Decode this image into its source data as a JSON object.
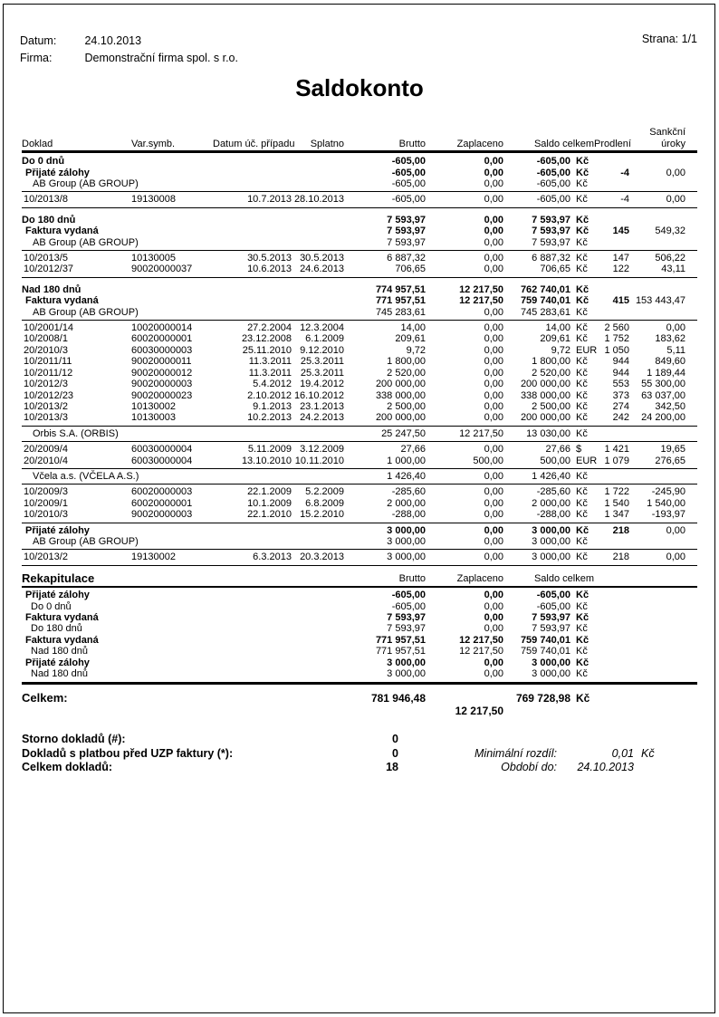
{
  "meta": {
    "datum_label": "Datum:",
    "datum_value": "24.10.2013",
    "firma_label": "Firma:",
    "firma_value": "Demonstrační firma spol. s r.o.",
    "strana": "Strana: 1/1"
  },
  "title": "Saldokonto",
  "table": {
    "headers": {
      "doklad": "Doklad",
      "varsymb": "Var.symb.",
      "datum": "Datum úč. případu",
      "splatno": "Splatno",
      "brutto": "Brutto",
      "zaplaceno": "Zaplaceno",
      "saldo": "Saldo celkem",
      "prodleni": "Prodlení",
      "sankcni_line1": "Sankční",
      "sankcni_line2": "úroky"
    },
    "rows": [
      {
        "t": "section",
        "name": "Do 0 dnů",
        "brutto": "-605,00",
        "zaplaceno": "0,00",
        "saldo": "-605,00",
        "mena": "Kč"
      },
      {
        "t": "group",
        "name": "Přijaté zálohy",
        "brutto": "-605,00",
        "zaplaceno": "0,00",
        "saldo": "-605,00",
        "mena": "Kč",
        "prodleni": "-4",
        "sankcni": "0,00"
      },
      {
        "t": "firm",
        "name": "AB Group (AB GROUP)",
        "brutto": "-605,00",
        "zaplaceno": "0,00",
        "saldo": "-605,00",
        "mena": "Kč"
      },
      {
        "t": "rule"
      },
      {
        "t": "detail",
        "doklad": "10/2013/8",
        "varsymb": "19130008",
        "datum": "10.7.2013",
        "splatno": "28.10.2013",
        "brutto": "-605,00",
        "zaplaceno": "0,00",
        "saldo": "-605,00",
        "mena": "Kč",
        "prodleni": "-4",
        "sankcni": "0,00"
      },
      {
        "t": "rule"
      },
      {
        "t": "gap"
      },
      {
        "t": "section",
        "name": "Do 180 dnů",
        "brutto": "7 593,97",
        "zaplaceno": "0,00",
        "saldo": "7 593,97",
        "mena": "Kč"
      },
      {
        "t": "group",
        "name": "Faktura vydaná",
        "brutto": "7 593,97",
        "zaplaceno": "0,00",
        "saldo": "7 593,97",
        "mena": "Kč",
        "prodleni": "145",
        "sankcni": "549,32"
      },
      {
        "t": "firm",
        "name": "AB Group (AB GROUP)",
        "brutto": "7 593,97",
        "zaplaceno": "0,00",
        "saldo": "7 593,97",
        "mena": "Kč"
      },
      {
        "t": "rule"
      },
      {
        "t": "detail",
        "doklad": "10/2013/5",
        "varsymb": "10130005",
        "datum": "30.5.2013",
        "splatno": "30.5.2013",
        "brutto": "6 887,32",
        "zaplaceno": "0,00",
        "saldo": "6 887,32",
        "mena": "Kč",
        "prodleni": "147",
        "sankcni": "506,22"
      },
      {
        "t": "detail",
        "doklad": "10/2012/37",
        "varsymb": "90020000037",
        "datum": "10.6.2013",
        "splatno": "24.6.2013",
        "brutto": "706,65",
        "zaplaceno": "0,00",
        "saldo": "706,65",
        "mena": "Kč",
        "prodleni": "122",
        "sankcni": "43,11"
      },
      {
        "t": "rule"
      },
      {
        "t": "gap"
      },
      {
        "t": "section",
        "name": "Nad 180 dnů",
        "brutto": "774 957,51",
        "zaplaceno": "12 217,50",
        "saldo": "762 740,01",
        "mena": "Kč"
      },
      {
        "t": "group",
        "name": "Faktura vydaná",
        "brutto": "771 957,51",
        "zaplaceno": "12 217,50",
        "saldo": "759 740,01",
        "mena": "Kč",
        "prodleni": "415",
        "sankcni": "153 443,47"
      },
      {
        "t": "firm",
        "name": "AB Group (AB GROUP)",
        "brutto": "745 283,61",
        "zaplaceno": "0,00",
        "saldo": "745 283,61",
        "mena": "Kč"
      },
      {
        "t": "rule"
      },
      {
        "t": "detail",
        "doklad": "10/2001/14",
        "varsymb": "10020000014",
        "datum": "27.2.2004",
        "splatno": "12.3.2004",
        "brutto": "14,00",
        "zaplaceno": "0,00",
        "saldo": "14,00",
        "mena": "Kč",
        "prodleni": "2 560",
        "sankcni": "0,00"
      },
      {
        "t": "detail",
        "doklad": "10/2008/1",
        "varsymb": "60020000001",
        "datum": "23.12.2008",
        "splatno": "6.1.2009",
        "brutto": "209,61",
        "zaplaceno": "0,00",
        "saldo": "209,61",
        "mena": "Kč",
        "prodleni": "1 752",
        "sankcni": "183,62"
      },
      {
        "t": "detail",
        "doklad": "20/2010/3",
        "varsymb": "60030000003",
        "datum": "25.11.2010",
        "splatno": "9.12.2010",
        "brutto": "9,72",
        "zaplaceno": "0,00",
        "saldo": "9,72",
        "mena": "EUR",
        "prodleni": "1 050",
        "sankcni": "5,11"
      },
      {
        "t": "detail",
        "doklad": "10/2011/11",
        "varsymb": "90020000011",
        "datum": "11.3.2011",
        "splatno": "25.3.2011",
        "brutto": "1 800,00",
        "zaplaceno": "0,00",
        "saldo": "1 800,00",
        "mena": "Kč",
        "prodleni": "944",
        "sankcni": "849,60"
      },
      {
        "t": "detail",
        "doklad": "10/2011/12",
        "varsymb": "90020000012",
        "datum": "11.3.2011",
        "splatno": "25.3.2011",
        "brutto": "2 520,00",
        "zaplaceno": "0,00",
        "saldo": "2 520,00",
        "mena": "Kč",
        "prodleni": "944",
        "sankcni": "1 189,44"
      },
      {
        "t": "detail",
        "doklad": "10/2012/3",
        "varsymb": "90020000003",
        "datum": "5.4.2012",
        "splatno": "19.4.2012",
        "brutto": "200 000,00",
        "zaplaceno": "0,00",
        "saldo": "200 000,00",
        "mena": "Kč",
        "prodleni": "553",
        "sankcni": "55 300,00"
      },
      {
        "t": "detail",
        "doklad": "10/2012/23",
        "varsymb": "90020000023",
        "datum": "2.10.2012",
        "splatno": "16.10.2012",
        "brutto": "338 000,00",
        "zaplaceno": "0,00",
        "saldo": "338 000,00",
        "mena": "Kč",
        "prodleni": "373",
        "sankcni": "63 037,00"
      },
      {
        "t": "detail",
        "doklad": "10/2013/2",
        "varsymb": "10130002",
        "datum": "9.1.2013",
        "splatno": "23.1.2013",
        "brutto": "2 500,00",
        "zaplaceno": "0,00",
        "saldo": "2 500,00",
        "mena": "Kč",
        "prodleni": "274",
        "sankcni": "342,50"
      },
      {
        "t": "detail",
        "doklad": "10/2013/3",
        "varsymb": "10130003",
        "datum": "10.2.2013",
        "splatno": "24.2.2013",
        "brutto": "200 000,00",
        "zaplaceno": "0,00",
        "saldo": "200 000,00",
        "mena": "Kč",
        "prodleni": "242",
        "sankcni": "24 200,00"
      },
      {
        "t": "rule"
      },
      {
        "t": "firm",
        "name": "Orbis S.A. (ORBIS)",
        "brutto": "25 247,50",
        "zaplaceno": "12 217,50",
        "saldo": "13 030,00",
        "mena": "Kč"
      },
      {
        "t": "rule"
      },
      {
        "t": "detail",
        "doklad": "20/2009/4",
        "varsymb": "60030000004",
        "datum": "5.11.2009",
        "splatno": "3.12.2009",
        "brutto": "27,66",
        "zaplaceno": "0,00",
        "saldo": "27,66",
        "mena": "$",
        "prodleni": "1 421",
        "sankcni": "19,65"
      },
      {
        "t": "detail",
        "doklad": "20/2010/4",
        "varsymb": "60030000004",
        "datum": "13.10.2010",
        "splatno": "10.11.2010",
        "brutto": "1 000,00",
        "zaplaceno": "500,00",
        "saldo": "500,00",
        "mena": "EUR",
        "prodleni": "1 079",
        "sankcni": "276,65"
      },
      {
        "t": "rule"
      },
      {
        "t": "firm",
        "name": "Včela a.s. (VČELA A.S.)",
        "brutto": "1 426,40",
        "zaplaceno": "0,00",
        "saldo": "1 426,40",
        "mena": "Kč"
      },
      {
        "t": "rule"
      },
      {
        "t": "detail",
        "doklad": "10/2009/3",
        "varsymb": "60020000003",
        "datum": "22.1.2009",
        "splatno": "5.2.2009",
        "brutto": "-285,60",
        "zaplaceno": "0,00",
        "saldo": "-285,60",
        "mena": "Kč",
        "prodleni": "1 722",
        "sankcni": "-245,90"
      },
      {
        "t": "detail",
        "doklad": "10/2009/1",
        "varsymb": "60020000001",
        "datum": "10.1.2009",
        "splatno": "6.8.2009",
        "brutto": "2 000,00",
        "zaplaceno": "0,00",
        "saldo": "2 000,00",
        "mena": "Kč",
        "prodleni": "1 540",
        "sankcni": "1 540,00"
      },
      {
        "t": "detail",
        "doklad": "10/2010/3",
        "varsymb": "90020000003",
        "datum": "22.1.2010",
        "splatno": "15.2.2010",
        "brutto": "-288,00",
        "zaplaceno": "0,00",
        "saldo": "-288,00",
        "mena": "Kč",
        "prodleni": "1 347",
        "sankcni": "-193,97"
      },
      {
        "t": "rule"
      },
      {
        "t": "group",
        "name": "Přijaté zálohy",
        "brutto": "3 000,00",
        "zaplaceno": "0,00",
        "saldo": "3 000,00",
        "mena": "Kč",
        "prodleni": "218",
        "sankcni": "0,00"
      },
      {
        "t": "firm",
        "name": "AB Group (AB GROUP)",
        "brutto": "3 000,00",
        "zaplaceno": "0,00",
        "saldo": "3 000,00",
        "mena": "Kč"
      },
      {
        "t": "rule"
      },
      {
        "t": "detail",
        "doklad": "10/2013/2",
        "varsymb": "19130002",
        "datum": "6.3.2013",
        "splatno": "20.3.2013",
        "brutto": "3 000,00",
        "zaplaceno": "0,00",
        "saldo": "3 000,00",
        "mena": "Kč",
        "prodleni": "218",
        "sankcni": "0,00"
      },
      {
        "t": "rule"
      }
    ]
  },
  "rekap": {
    "title": "Rekapitulace",
    "headers": {
      "brutto": "Brutto",
      "zaplaceno": "Zaplaceno",
      "saldo": "Saldo celkem"
    },
    "rows": [
      {
        "t": "group",
        "name": "Přijaté zálohy",
        "brutto": "-605,00",
        "zaplaceno": "0,00",
        "saldo": "-605,00",
        "mena": "Kč"
      },
      {
        "t": "sub",
        "name": "Do 0 dnů",
        "brutto": "-605,00",
        "zaplaceno": "0,00",
        "saldo": "-605,00",
        "mena": "Kč"
      },
      {
        "t": "group",
        "name": "Faktura vydaná",
        "brutto": "7 593,97",
        "zaplaceno": "0,00",
        "saldo": "7 593,97",
        "mena": "Kč"
      },
      {
        "t": "sub",
        "name": "Do 180 dnů",
        "brutto": "7 593,97",
        "zaplaceno": "0,00",
        "saldo": "7 593,97",
        "mena": "Kč"
      },
      {
        "t": "group",
        "name": "Faktura vydaná",
        "brutto": "771 957,51",
        "zaplaceno": "12 217,50",
        "saldo": "759 740,01",
        "mena": "Kč"
      },
      {
        "t": "sub",
        "name": "Nad 180 dnů",
        "brutto": "771 957,51",
        "zaplaceno": "12 217,50",
        "saldo": "759 740,01",
        "mena": "Kč"
      },
      {
        "t": "group",
        "name": "Přijaté zálohy",
        "brutto": "3 000,00",
        "zaplaceno": "0,00",
        "saldo": "3 000,00",
        "mena": "Kč"
      },
      {
        "t": "sub",
        "name": "Nad 180 dnů",
        "brutto": "3 000,00",
        "zaplaceno": "0,00",
        "saldo": "3 000,00",
        "mena": "Kč"
      }
    ]
  },
  "celkem": {
    "label": "Celkem:",
    "brutto": "781 946,48",
    "zaplaceno": "12 217,50",
    "saldo": "769 728,98",
    "mena": "Kč"
  },
  "footer": {
    "rows": [
      {
        "label": "Storno dokladů (#):",
        "value": "0",
        "rlabel": "",
        "rvalue": "",
        "rsuffix": ""
      },
      {
        "label": "Dokladů s platbou před UZP faktury (*):",
        "value": "0",
        "rlabel": "Minimální rozdíl:",
        "rvalue": "0,01",
        "rsuffix": "Kč"
      },
      {
        "label": "Celkem dokladů:",
        "value": "18",
        "rlabel": "Období do:",
        "rvalue": "24.10.2013",
        "rsuffix": ""
      }
    ]
  }
}
